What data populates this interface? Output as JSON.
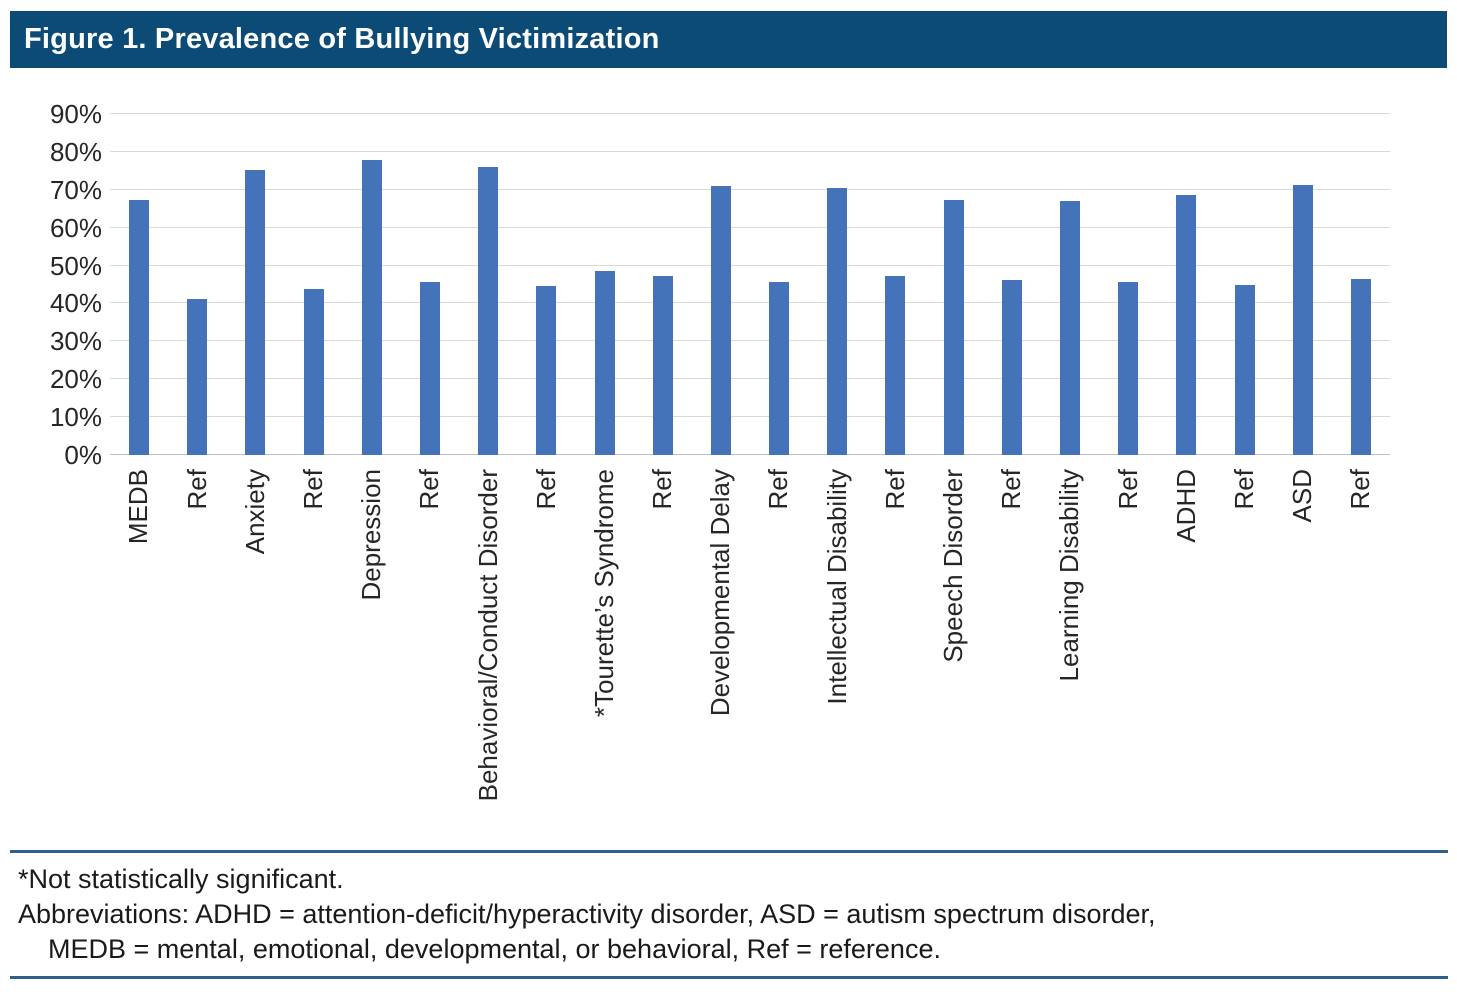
{
  "title": "Figure 1. Prevalence of Bullying Victimization",
  "chart_data": {
    "type": "bar",
    "title": "Figure 1. Prevalence of Bullying Victimization",
    "xlabel": "",
    "ylabel": "",
    "unit": "%",
    "ylim": [
      0,
      90
    ],
    "ytick_step": 10,
    "ytick_labels": [
      "0%",
      "10%",
      "20%",
      "30%",
      "40%",
      "50%",
      "60%",
      "70%",
      "80%",
      "90%"
    ],
    "grid": "horizontal",
    "legend": "none",
    "categories": [
      "MEDB",
      "Ref",
      "Anxiety",
      "Ref",
      "Depression",
      "Ref",
      "Behavioral/Conduct Disorder",
      "Ref",
      "*Tourette’s Syndrome",
      "Ref",
      "Developmental Delay",
      "Ref",
      "Intellectual Disability",
      "Ref",
      "Speech Disorder",
      "Ref",
      "Learning Disability",
      "Ref",
      "ADHD",
      "Ref",
      "ASD",
      "Ref"
    ],
    "values": [
      67.3,
      41.1,
      75.2,
      43.7,
      77.9,
      45.6,
      76.1,
      44.6,
      48.6,
      47.3,
      70.9,
      45.7,
      70.5,
      47.2,
      67.2,
      46.1,
      67.0,
      45.7,
      68.6,
      44.9,
      71.3,
      46.5
    ]
  },
  "footnote": {
    "line1": "*Not statistically significant.",
    "line2": "Abbreviations: ADHD = attention-deficit/hyperactivity disorder, ASD = autism spectrum disorder,",
    "line3": "MEDB = mental, emotional, developmental, or behavioral, Ref = reference."
  },
  "colors": {
    "title_bar_bg": "#0c4b76",
    "title_text": "#ffffff",
    "bar": "#4573b9",
    "gridline": "#d9d9d9",
    "axis_line": "#bfbfbf",
    "rule": "#2e5f8c"
  }
}
